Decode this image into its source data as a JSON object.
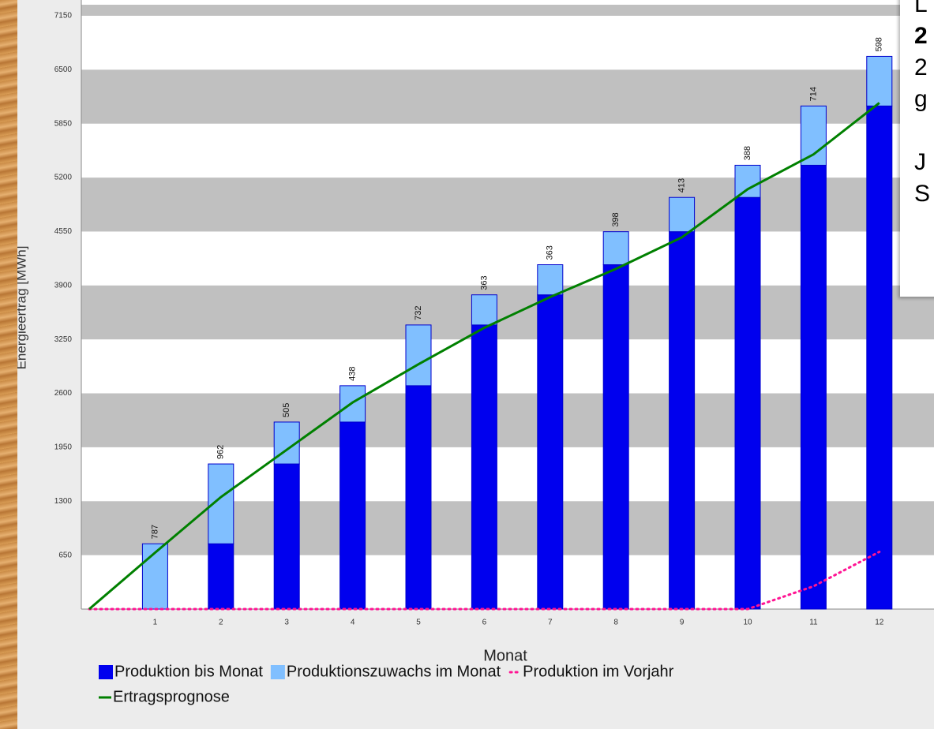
{
  "chart_data": {
    "type": "bar",
    "stacked": true,
    "y_label": "Energieertrag [MWh]",
    "x_label": "Monat",
    "categories": [
      null,
      "1",
      "2",
      "3",
      "4",
      "5",
      "6",
      "7",
      "8",
      "9",
      "10",
      "11",
      "12"
    ],
    "series": [
      {
        "name": "Produktion bis Monat",
        "type": "bar",
        "color": "#0000ee",
        "show_labels": false,
        "values": [
          null,
          0,
          787,
          1749,
          2254,
          2692,
          3424,
          3787,
          4150,
          4548,
          4961,
          5349,
          6063
        ]
      },
      {
        "name": "Produktionszuwachs im Monat",
        "type": "bar",
        "color": "#80bfff",
        "show_labels": true,
        "values": [
          null,
          787,
          962,
          505,
          438,
          732,
          363,
          363,
          398,
          413,
          388,
          714,
          598
        ]
      },
      {
        "name": "Produktion im Vorjahr",
        "type": "dotted",
        "color": "#ff1493",
        "values": [
          0,
          0,
          0,
          0,
          0,
          0,
          0,
          0,
          0,
          0,
          0,
          275,
          690
        ]
      },
      {
        "name": "Ertragsprognose",
        "type": "line",
        "color": "#008000",
        "values": [
          0,
          680,
          1350,
          1920,
          2490,
          2950,
          3390,
          3760,
          4100,
          4480,
          5060,
          5480,
          6100
        ]
      }
    ],
    "ylim": [
      0,
      7150
    ],
    "yticks": [
      650,
      1300,
      1950,
      2600,
      3250,
      3900,
      4550,
      5200,
      5850,
      6500,
      7150
    ],
    "banded_grid": true
  },
  "overlay": {
    "lines": [
      "L",
      "2",
      "2",
      "g",
      "J",
      "S"
    ]
  }
}
